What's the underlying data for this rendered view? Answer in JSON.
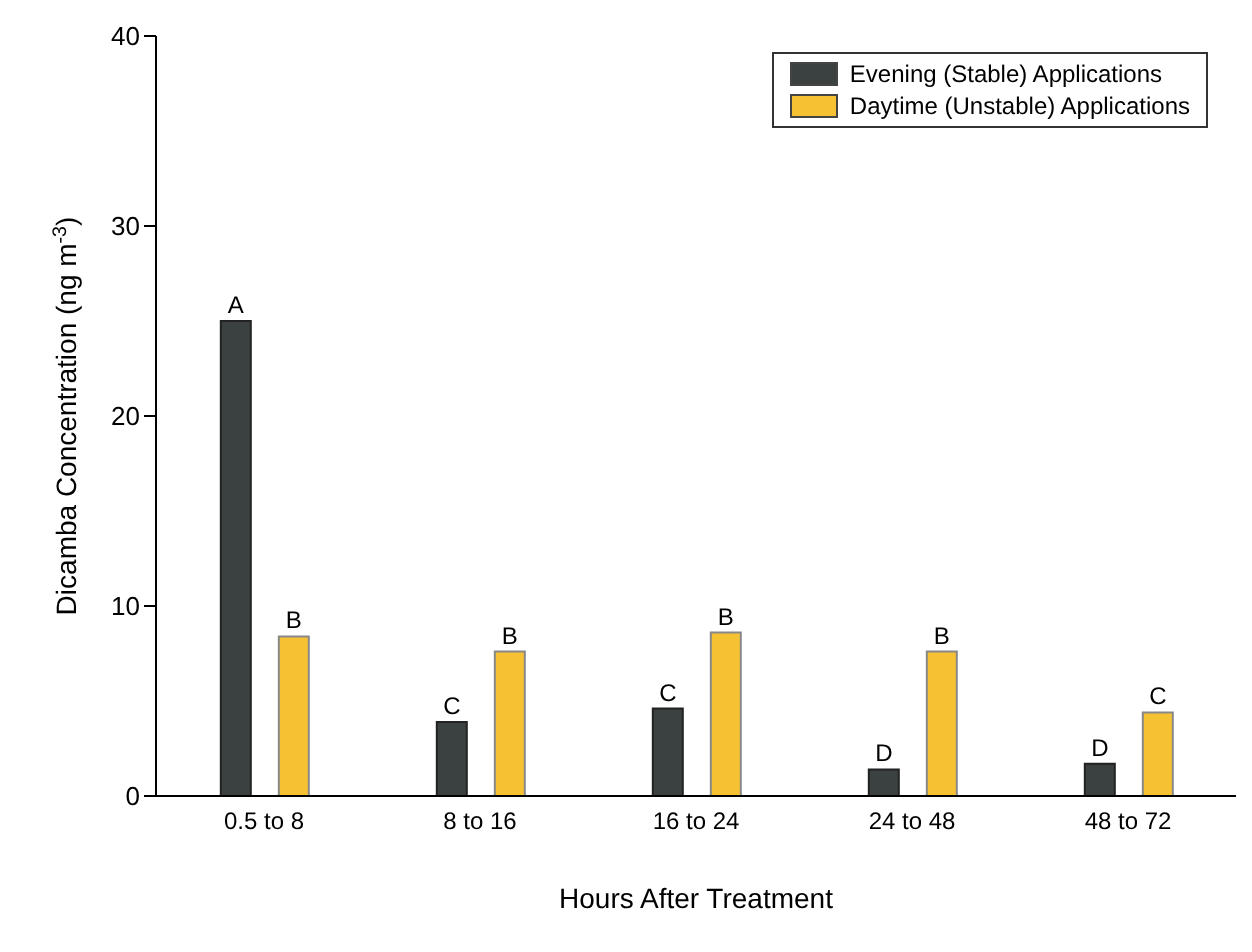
{
  "chart_data": {
    "type": "bar",
    "xlabel": "Hours After Treatment",
    "ylabel": "Dicamba Concentration (ng m$^{-3}$)",
    "categories": [
      "0.5 to 8",
      "8 to 16",
      "16 to 24",
      "24 to 48",
      "48 to 72"
    ],
    "series": [
      {
        "name": "Evening (Stable) Applications",
        "color": "#3b4040",
        "values": [
          25,
          3.9,
          4.6,
          1.4,
          1.7
        ],
        "value_labels": [
          "A",
          "C",
          "C",
          "D",
          "D"
        ]
      },
      {
        "name": "Daytime (Unstable) Applications",
        "color": "#f6c233",
        "values": [
          8.4,
          7.6,
          8.6,
          7.6,
          4.4
        ],
        "value_labels": [
          "B",
          "B",
          "B",
          "B",
          "C"
        ]
      }
    ],
    "ylim": [
      0,
      40
    ],
    "yticks": [
      0,
      10,
      20,
      30,
      40
    ],
    "grid": false,
    "legend": "top right"
  }
}
